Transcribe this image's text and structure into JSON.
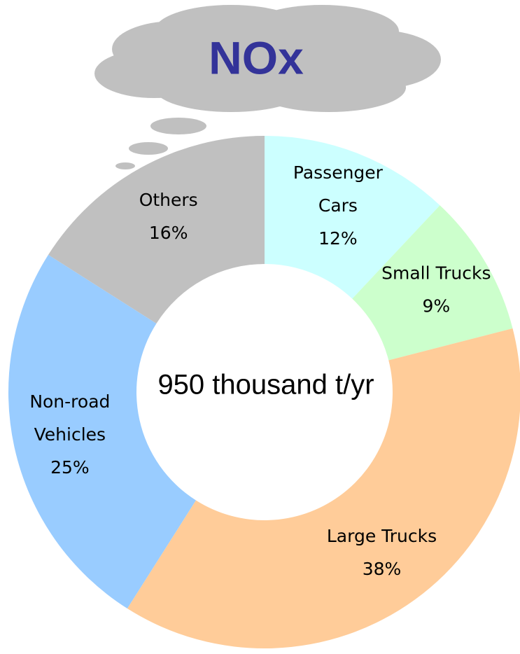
{
  "chart_data": {
    "type": "donut",
    "title": "NOx",
    "center_label": "950 thousand t/yr",
    "categories": [
      "Passenger\nCars",
      "Small Trucks",
      "Large Trucks",
      "Non-road\nVehicles",
      "Others"
    ],
    "values": [
      12,
      9,
      38,
      25,
      16
    ],
    "value_labels": [
      "12%",
      "9%",
      "38%",
      "25%",
      "16%"
    ],
    "colors": [
      "#ccffff",
      "#ccffcc",
      "#ffcc99",
      "#99ccff",
      "#c0c0c0"
    ]
  }
}
